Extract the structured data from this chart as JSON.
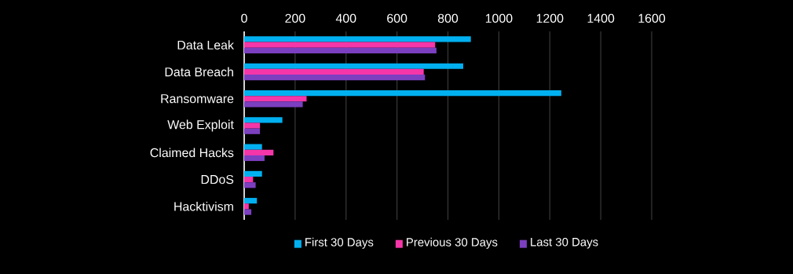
{
  "chart_data": {
    "type": "bar",
    "orientation": "horizontal",
    "categories": [
      "Data Leak",
      "Data Breach",
      "Ransomware",
      "Web Exploit",
      "Claimed Hacks",
      "DDoS",
      "Hacktivism"
    ],
    "series": [
      {
        "name": "First 30 Days",
        "color": "#00b0f0",
        "values": [
          890,
          860,
          1245,
          150,
          70,
          70,
          50
        ]
      },
      {
        "name": "Previous 30 Days",
        "color": "#f536a8",
        "values": [
          750,
          705,
          245,
          62,
          115,
          35,
          18
        ]
      },
      {
        "name": "Last 30 Days",
        "color": "#7b3fc0",
        "values": [
          755,
          710,
          230,
          62,
          80,
          45,
          28
        ]
      }
    ],
    "xlim": [
      0,
      1600
    ],
    "xticks": [
      0,
      200,
      400,
      600,
      800,
      1000,
      1200,
      1400,
      1600
    ],
    "grid": "x",
    "legend": "bottom"
  }
}
